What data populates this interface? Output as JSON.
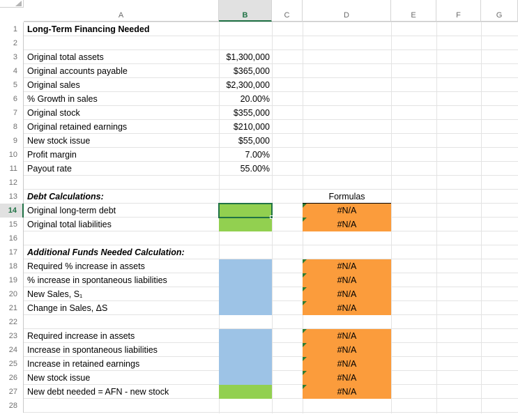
{
  "columns": [
    "A",
    "B",
    "C",
    "D",
    "E",
    "F",
    "G"
  ],
  "selected_column": "B",
  "rows": [
    "1",
    "2",
    "3",
    "4",
    "5",
    "6",
    "7",
    "8",
    "9",
    "10",
    "11",
    "12",
    "13",
    "14",
    "15",
    "16",
    "17",
    "18",
    "19",
    "20",
    "21",
    "22",
    "23",
    "24",
    "25",
    "26",
    "27",
    "28"
  ],
  "selected_row": "14",
  "title": "Long-Term Financing Needed",
  "inputs": [
    {
      "label": "Original total assets",
      "value": "$1,300,000"
    },
    {
      "label": "Original accounts payable",
      "value": "$365,000"
    },
    {
      "label": "Original sales",
      "value": "$2,300,000"
    },
    {
      "label": "% Growth in sales",
      "value": "20.00%"
    },
    {
      "label": "Original stock",
      "value": "$355,000"
    },
    {
      "label": "Original retained earnings",
      "value": "$210,000"
    },
    {
      "label": "New stock issue",
      "value": "$55,000"
    },
    {
      "label": "Profit margin",
      "value": "7.00%"
    },
    {
      "label": "Payout rate",
      "value": "55.00%"
    }
  ],
  "debt_section": {
    "heading": "Debt Calculations:",
    "formulas_heading": "Formulas",
    "rows": [
      {
        "label": "Original long-term debt",
        "formula": "#N/A"
      },
      {
        "label": "Original total liabilities",
        "formula": "#N/A"
      }
    ]
  },
  "afn_section": {
    "heading": "Additional Funds Needed Calculation:",
    "rows": [
      {
        "label": "Required % increase in assets",
        "formula": "#N/A"
      },
      {
        "label": "% increase in spontaneous liabilities",
        "formula": "#N/A"
      },
      {
        "label": "New Sales, S₁",
        "formula": "#N/A"
      },
      {
        "label": "Change in Sales, ΔS",
        "formula": "#N/A"
      }
    ]
  },
  "results_section": {
    "rows": [
      {
        "label": "Required increase in assets",
        "formula": "#N/A"
      },
      {
        "label": "Increase in spontaneous liabilities",
        "formula": "#N/A"
      },
      {
        "label": "Increase in retained earnings",
        "formula": "#N/A"
      },
      {
        "label": "New stock issue",
        "formula": "#N/A"
      },
      {
        "label": "New debt needed = AFN - new stock",
        "formula": "#N/A"
      }
    ]
  },
  "colors": {
    "green_fill": "#92d050",
    "blue_fill": "#9dc3e6",
    "orange_fill": "#fb9c3c",
    "selection": "#217346",
    "error_indicator": "#2e7d32"
  }
}
